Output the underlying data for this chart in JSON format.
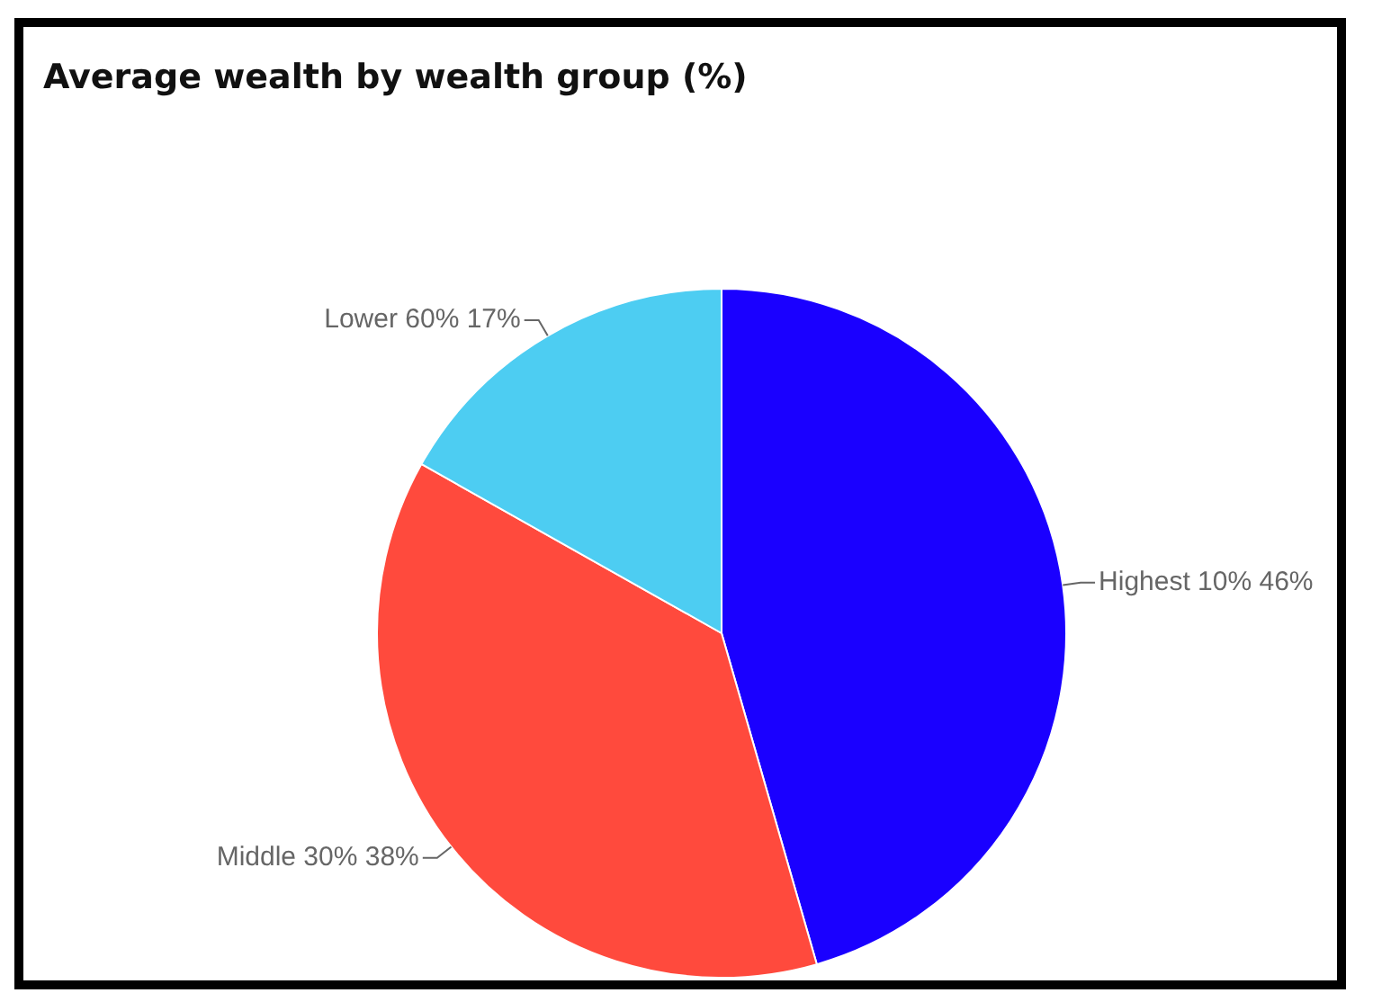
{
  "chart_data": {
    "type": "pie",
    "title": "Average wealth by wealth group (%)",
    "categories": [
      "Highest 10%",
      "Middle 30%",
      "Lower 60%"
    ],
    "values": [
      46,
      38,
      17
    ],
    "value_labels": [
      "46%",
      "38%",
      "17%"
    ],
    "colors": [
      "#1a00ff",
      "#ff4a3d",
      "#4dcdf2"
    ],
    "legend": false
  }
}
